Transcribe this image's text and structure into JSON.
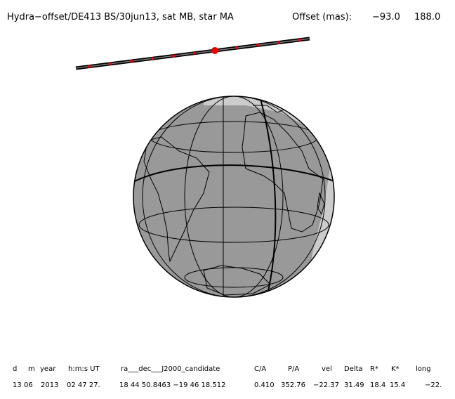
{
  "header": {
    "title": "Hydra−offset/DE413 BS/30jun13, sat MB, star MA",
    "offset_label": "Offset (mas):",
    "offset_x": "−93.0",
    "offset_y": "188.0"
  },
  "table": {
    "columns": [
      "d",
      "m",
      "year",
      "h:m:s UT",
      "ra___dec___J2000_candidate",
      "C/A",
      "P/A",
      "vel",
      "Delta",
      "R*",
      "K*",
      "long"
    ],
    "rows": [
      [
        "13",
        "06",
        "2013",
        "02 47 27.",
        "18 44 50.8463 −19 46 18.512",
        "0.410",
        "352.76",
        "−22.37",
        "31.49",
        "18.4",
        "15.4",
        "−22."
      ]
    ]
  }
}
